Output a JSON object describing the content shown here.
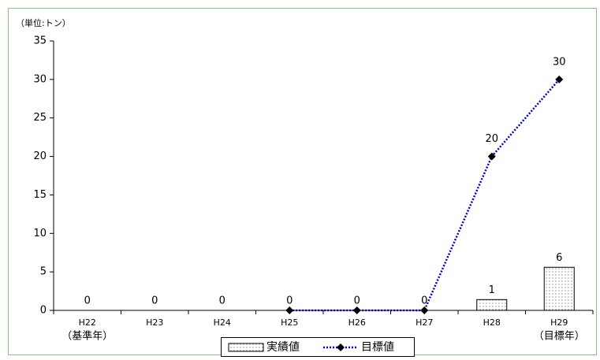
{
  "chart_data": {
    "type": "bar_line",
    "unit_label": "（単位:トン）",
    "categories": [
      "H22",
      "H23",
      "H24",
      "H25",
      "H26",
      "H27",
      "H28",
      "H29"
    ],
    "category_notes": [
      "（基準年）",
      null,
      null,
      null,
      null,
      null,
      null,
      "（目標年）"
    ],
    "series": [
      {
        "name": "実績値",
        "type": "bar",
        "color": "#ffffff",
        "values": [
          0,
          0,
          0,
          0,
          0,
          0,
          1.4,
          5.6
        ],
        "value_labels": [
          "0",
          "0",
          "0",
          "0",
          "0",
          "0",
          "1",
          "6"
        ]
      },
      {
        "name": "目標値",
        "type": "line",
        "color": "#0000cc",
        "values": [
          null,
          null,
          null,
          0,
          0,
          0,
          20,
          30
        ],
        "value_labels": [
          null,
          null,
          null,
          null,
          null,
          null,
          "20",
          "30"
        ]
      }
    ],
    "ylim": [
      0,
      35
    ],
    "yticks": [
      0,
      5,
      10,
      15,
      20,
      25,
      30,
      35
    ],
    "grid": false,
    "legend": "bottom"
  }
}
